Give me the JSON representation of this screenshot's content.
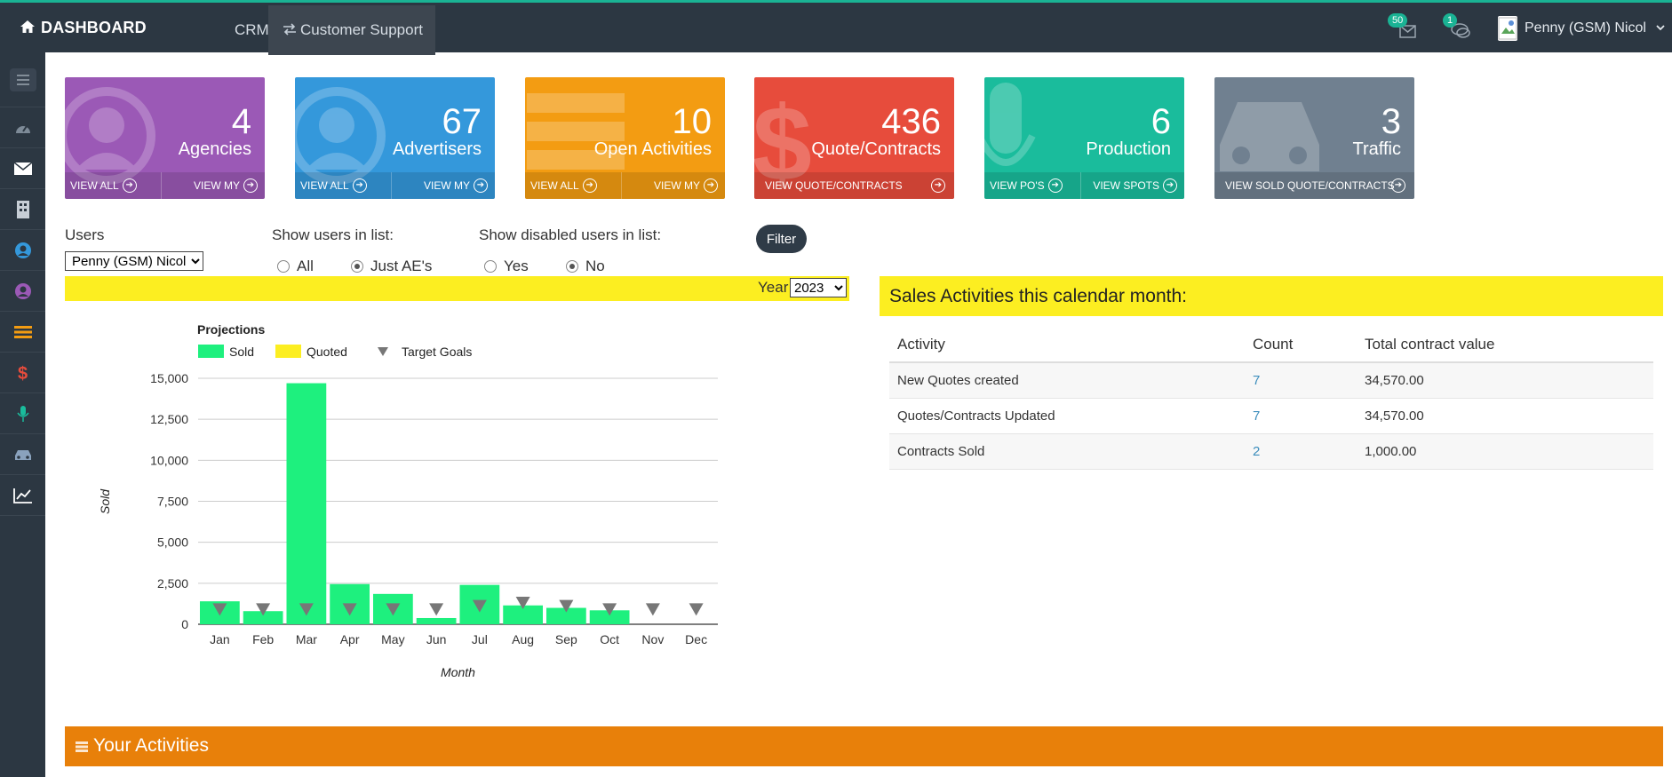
{
  "topbar": {
    "brand": "DASHBOARD",
    "nav": [
      "CRM",
      "Customer Support"
    ],
    "mail_badge": "50",
    "chat_badge": "1",
    "user_name": "Penny (GSM) Nicol"
  },
  "sidebar": {
    "icons": [
      "menu-icon",
      "dashboard-icon",
      "envelope-icon",
      "building-icon",
      "user-icon",
      "user-circle-icon",
      "list-icon",
      "dollar-icon",
      "microphone-icon",
      "car-icon",
      "chart-line-icon"
    ]
  },
  "tiles": [
    {
      "count": "4",
      "label": "Agencies",
      "links": [
        "VIEW ALL",
        "VIEW MY"
      ],
      "color": "#9b59b6"
    },
    {
      "count": "67",
      "label": "Advertisers",
      "links": [
        "VIEW ALL",
        "VIEW MY"
      ],
      "color": "#3498db"
    },
    {
      "count": "10",
      "label": "Open Activities",
      "links": [
        "VIEW ALL",
        "VIEW MY"
      ],
      "color": "#f39c12"
    },
    {
      "count": "436",
      "label": "Quote/Contracts",
      "links": [
        "VIEW QUOTE/CONTRACTS"
      ],
      "color": "#e74c3c"
    },
    {
      "count": "6",
      "label": "Production",
      "links": [
        "VIEW PO'S",
        "VIEW SPOTS"
      ],
      "color": "#1abc9c"
    },
    {
      "count": "3",
      "label": "Traffic",
      "links": [
        "VIEW SOLD QUOTE/CONTRACTS"
      ],
      "color": "#708090"
    }
  ],
  "filters": {
    "users_label": "Users",
    "users_value": "Penny (GSM) Nicol",
    "show_users_label": "Show users in list:",
    "show_users_options": [
      "All",
      "Just AE's"
    ],
    "show_users_selected": "Just AE's",
    "show_disabled_label": "Show disabled users in list:",
    "show_disabled_options": [
      "Yes",
      "No"
    ],
    "show_disabled_selected": "No",
    "filter_button": "Filter",
    "year_label": "Year",
    "year_value": "2023"
  },
  "chart_data": {
    "type": "bar",
    "title": "Projections",
    "xlabel": "Month",
    "ylabel": "Sold",
    "categories": [
      "Jan",
      "Feb",
      "Mar",
      "Apr",
      "May",
      "Jun",
      "Jul",
      "Aug",
      "Sep",
      "Oct",
      "Nov",
      "Dec"
    ],
    "series": [
      {
        "name": "Sold",
        "color": "#1ef07e",
        "values": [
          1400,
          800,
          14700,
          2450,
          1850,
          380,
          2400,
          1150,
          1000,
          850,
          0,
          0
        ]
      },
      {
        "name": "Quoted",
        "color": "#fcee21",
        "values": [
          0,
          0,
          0,
          0,
          0,
          0,
          0,
          0,
          0,
          0,
          0,
          0
        ]
      },
      {
        "name": "Target Goals",
        "color": "#777777",
        "marker": "triangle-down",
        "values": [
          900,
          900,
          900,
          900,
          900,
          900,
          1100,
          1300,
          1100,
          900,
          900,
          900
        ]
      }
    ],
    "ylim": [
      0,
      15000
    ],
    "yticks": [
      "0",
      "2,500",
      "5,000",
      "7,500",
      "10,000",
      "12,500",
      "15,000"
    ],
    "grid": true,
    "legend": "top-left"
  },
  "sales": {
    "heading": "Sales Activities this calendar month:",
    "columns": [
      "Activity",
      "Count",
      "Total contract value"
    ],
    "rows": [
      {
        "activity": "New Quotes created",
        "count": "7",
        "value": "34,570.00"
      },
      {
        "activity": "Quotes/Contracts Updated",
        "count": "7",
        "value": "34,570.00"
      },
      {
        "activity": "Contracts Sold",
        "count": "2",
        "value": "1,000.00"
      }
    ]
  },
  "activities": {
    "heading": "Your Activities"
  }
}
